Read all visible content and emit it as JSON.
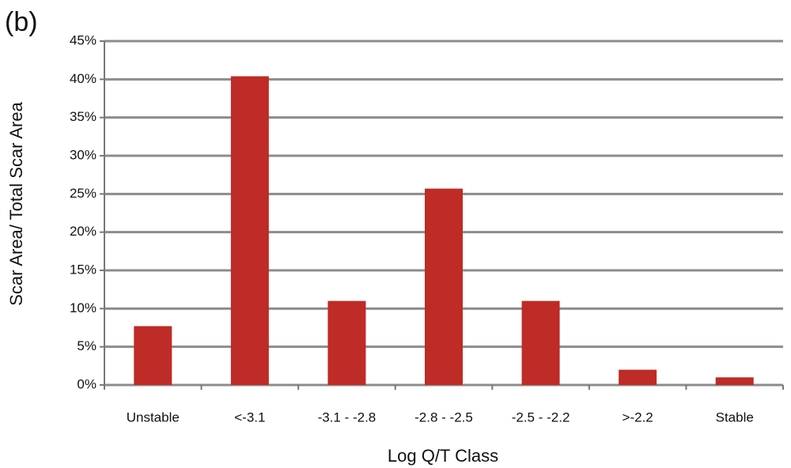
{
  "chart_data": {
    "type": "bar",
    "panel_label": "(b)",
    "x_label": "Log Q/T Class",
    "y_label": "Scar Area/ Total Scar Area",
    "categories": [
      "Unstable",
      "<-3.1",
      "-3.1 - -2.8",
      "-2.8 - -2.5",
      "-2.5 - -2.2",
      ">-2.2",
      "Stable"
    ],
    "values": [
      7.7,
      40.4,
      11,
      25.7,
      11,
      2,
      1
    ],
    "color": "#bf2b26",
    "ylim": [
      0,
      45
    ],
    "yticks": [
      {
        "value": 0,
        "label": "0%"
      },
      {
        "value": 5,
        "label": "5%"
      },
      {
        "value": 10,
        "label": "10%"
      },
      {
        "value": 15,
        "label": "15%"
      },
      {
        "value": 20,
        "label": "20%"
      },
      {
        "value": 25,
        "label": "25%"
      },
      {
        "value": 30,
        "label": "30%"
      },
      {
        "value": 35,
        "label": "35%"
      },
      {
        "value": 40,
        "label": "40%"
      },
      {
        "value": 45,
        "label": "45%"
      }
    ],
    "grid": true
  }
}
